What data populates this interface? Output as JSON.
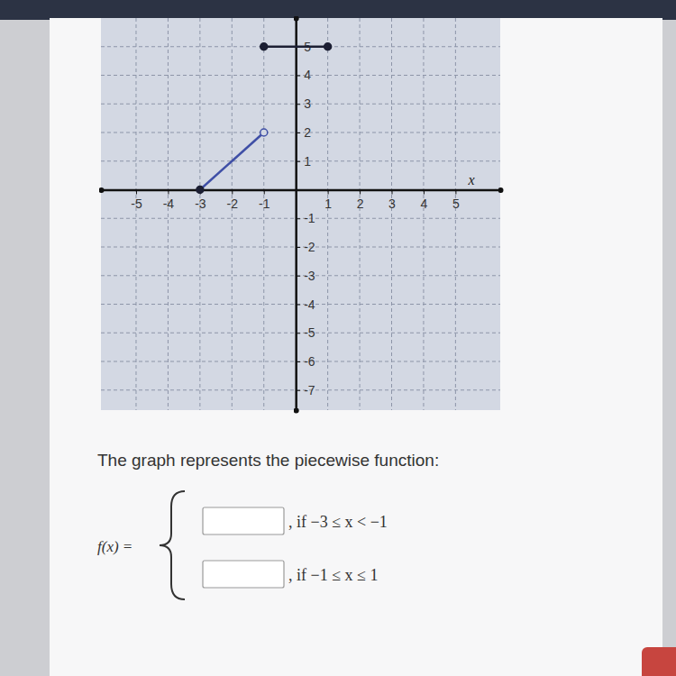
{
  "chart_data": {
    "type": "line",
    "xlabel": "x",
    "xlim": [
      -6.1,
      6.4
    ],
    "ylim": [
      -7.7,
      6.0
    ],
    "xticks": [
      -5,
      -4,
      -3,
      -2,
      -1,
      1,
      2,
      3,
      4,
      5
    ],
    "yticks": [
      5,
      4,
      3,
      2,
      1,
      -1,
      -2,
      -3,
      -4,
      -5,
      -6,
      -7
    ],
    "grid": true,
    "series": [
      {
        "type": "line",
        "color": "#3f4fa6",
        "x": [
          -3,
          -1
        ],
        "values": [
          0,
          2
        ]
      },
      {
        "type": "line",
        "color": "#1c1f33",
        "x": [
          -1,
          1
        ],
        "values": [
          5,
          5
        ]
      },
      {
        "type": "scatter",
        "marker": "circle",
        "color": "#1c1f33",
        "x": [
          -3,
          -1,
          1
        ],
        "values": [
          0,
          5,
          5
        ]
      },
      {
        "type": "scatter",
        "marker": "open-circle",
        "color": "#3f4fa6",
        "x": [
          -1
        ],
        "values": [
          2
        ]
      }
    ]
  },
  "question": {
    "prompt": "The graph represents the piecewise function:",
    "function": "f(x) =",
    "conditions": [
      ", if −3 ≤ x < −1",
      ", if −1 ≤ x ≤ 1"
    ]
  }
}
